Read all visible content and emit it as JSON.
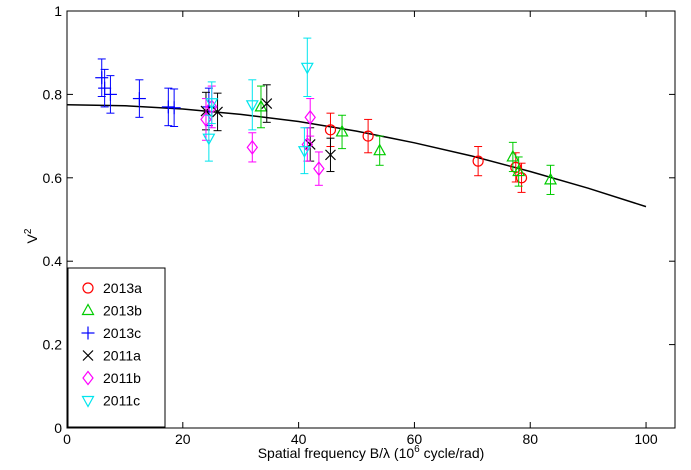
{
  "chart_data": {
    "type": "scatter",
    "xlabel_prefix": "Spatial frequency B/λ (10",
    "xlabel_sup": "6",
    "xlabel_suffix": " cycle/rad)",
    "ylabel_base": "V",
    "ylabel_sup": "2",
    "xlim": [
      0,
      105
    ],
    "ylim": [
      0,
      1
    ],
    "xticks": [
      0,
      20,
      40,
      60,
      80,
      100
    ],
    "yticks": [
      0,
      0.2,
      0.4,
      0.6,
      0.8,
      1
    ],
    "ytick_labels": [
      "0",
      "0.2",
      "0.4",
      "0.6",
      "0.8",
      "1"
    ],
    "grid": false,
    "legend_position": "bottom-left",
    "model_curve": {
      "color": "#000000",
      "x": [
        0,
        10,
        20,
        30,
        40,
        50,
        60,
        70,
        80,
        90,
        100
      ],
      "y": [
        0.775,
        0.773,
        0.765,
        0.752,
        0.735,
        0.712,
        0.684,
        0.652,
        0.615,
        0.575,
        0.531
      ]
    },
    "series": [
      {
        "name": "2013a",
        "marker": "circle",
        "color": "#ff0000",
        "points": [
          {
            "x": 45.5,
            "y": 0.715,
            "err": 0.04
          },
          {
            "x": 52.0,
            "y": 0.7,
            "err": 0.04
          },
          {
            "x": 71.0,
            "y": 0.64,
            "err": 0.035
          },
          {
            "x": 77.5,
            "y": 0.625,
            "err": 0.035
          },
          {
            "x": 78.5,
            "y": 0.6,
            "err": 0.035
          }
        ]
      },
      {
        "name": "2013b",
        "marker": "triangle-up",
        "color": "#00cc00",
        "points": [
          {
            "x": 33.5,
            "y": 0.77,
            "err": 0.05
          },
          {
            "x": 47.5,
            "y": 0.71,
            "err": 0.04
          },
          {
            "x": 54.0,
            "y": 0.665,
            "err": 0.035
          },
          {
            "x": 77.0,
            "y": 0.65,
            "err": 0.035
          },
          {
            "x": 78.0,
            "y": 0.615,
            "err": 0.035
          },
          {
            "x": 83.5,
            "y": 0.595,
            "err": 0.035
          }
        ]
      },
      {
        "name": "2013c",
        "marker": "plus",
        "color": "#0000ff",
        "points": [
          {
            "x": 6.0,
            "y": 0.84,
            "err": 0.045
          },
          {
            "x": 6.5,
            "y": 0.815,
            "err": 0.045
          },
          {
            "x": 7.5,
            "y": 0.8,
            "err": 0.045
          },
          {
            "x": 12.5,
            "y": 0.79,
            "err": 0.045
          },
          {
            "x": 17.5,
            "y": 0.77,
            "err": 0.045
          },
          {
            "x": 18.5,
            "y": 0.768,
            "err": 0.045
          },
          {
            "x": 24.5,
            "y": 0.77,
            "err": 0.045
          }
        ]
      },
      {
        "name": "2011a",
        "marker": "cross",
        "color": "#000000",
        "points": [
          {
            "x": 24.0,
            "y": 0.76,
            "err": 0.045
          },
          {
            "x": 26.0,
            "y": 0.758,
            "err": 0.045
          },
          {
            "x": 34.5,
            "y": 0.778,
            "err": 0.045
          },
          {
            "x": 42.0,
            "y": 0.68,
            "err": 0.04
          },
          {
            "x": 45.5,
            "y": 0.655,
            "err": 0.04
          }
        ]
      },
      {
        "name": "2011b",
        "marker": "diamond",
        "color": "#ff00ff",
        "points": [
          {
            "x": 24.0,
            "y": 0.74,
            "err": 0.05
          },
          {
            "x": 25.0,
            "y": 0.77,
            "err": 0.05
          },
          {
            "x": 32.0,
            "y": 0.673,
            "err": 0.035
          },
          {
            "x": 41.5,
            "y": 0.68,
            "err": 0.04
          },
          {
            "x": 42.0,
            "y": 0.745,
            "err": 0.045
          },
          {
            "x": 43.5,
            "y": 0.622,
            "err": 0.04
          }
        ]
      },
      {
        "name": "2011c",
        "marker": "triangle-down",
        "color": "#00e5ee",
        "points": [
          {
            "x": 24.5,
            "y": 0.695,
            "err": 0.055
          },
          {
            "x": 25.0,
            "y": 0.78,
            "err": 0.05
          },
          {
            "x": 32.0,
            "y": 0.775,
            "err": 0.06
          },
          {
            "x": 41.5,
            "y": 0.865,
            "err": 0.07
          },
          {
            "x": 41.0,
            "y": 0.665,
            "err": 0.055
          }
        ]
      }
    ]
  }
}
